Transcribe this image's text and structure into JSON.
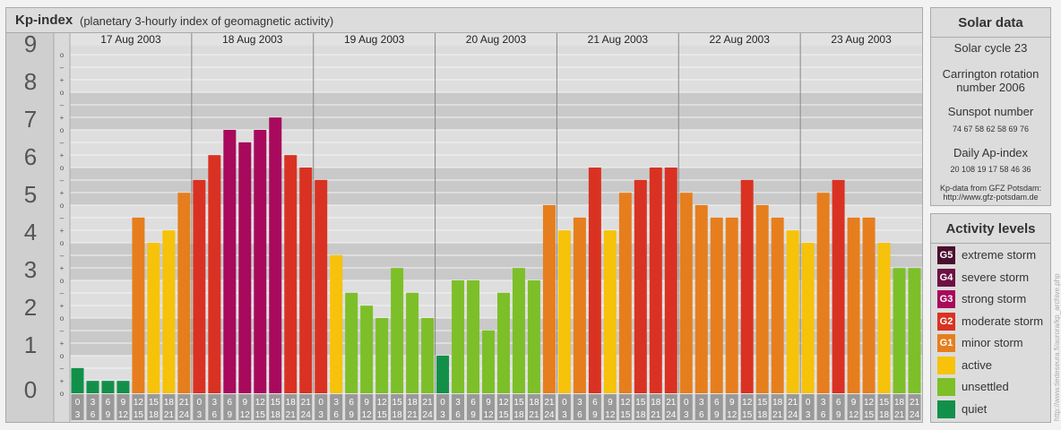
{
  "header": {
    "title": "Kp-index",
    "subtitle": "(planetary 3-hourly index of geomagnetic activity)"
  },
  "chart_data": {
    "type": "bar",
    "title": "Kp-index",
    "subtitle": "(planetary 3-hourly index of geomagnetic activity)",
    "y_ticks": [
      "0",
      "1",
      "2",
      "3",
      "4",
      "5",
      "6",
      "7",
      "8",
      "9"
    ],
    "ylim": [
      0,
      9
    ],
    "minor_ticks": [
      "o",
      "+",
      "–"
    ],
    "days": [
      "17 Aug 2003",
      "18 Aug 2003",
      "19 Aug 2003",
      "20 Aug 2003",
      "21 Aug 2003",
      "22 Aug 2003",
      "23 Aug 2003"
    ],
    "interval_start": [
      "0",
      "3",
      "6",
      "9",
      "12",
      "15",
      "18",
      "21"
    ],
    "interval_end": [
      "3",
      "6",
      "9",
      "12",
      "15",
      "18",
      "21",
      "24"
    ],
    "values": [
      [
        0.67,
        0.33,
        0.33,
        0.33,
        4.67,
        4.0,
        4.33,
        5.33
      ],
      [
        5.67,
        6.33,
        7.0,
        6.67,
        7.0,
        7.33,
        6.33,
        6.0
      ],
      [
        5.67,
        3.67,
        2.67,
        2.33,
        2.0,
        3.33,
        2.67,
        2.0
      ],
      [
        1.0,
        3.0,
        3.0,
        1.67,
        2.67,
        3.33,
        3.0,
        5.0
      ],
      [
        4.33,
        4.67,
        6.0,
        4.33,
        5.33,
        5.67,
        6.0,
        6.0
      ],
      [
        5.33,
        5.0,
        4.67,
        4.67,
        5.67,
        5.0,
        4.67,
        4.33
      ],
      [
        4.0,
        5.33,
        5.67,
        4.67,
        4.67,
        4.0,
        3.33,
        3.33
      ]
    ],
    "grid": true,
    "legend": "right"
  },
  "colors": {
    "extreme": "#4b0f2e",
    "severe": "#6e1044",
    "strong": "#a8095c",
    "moderate": "#d93222",
    "minor": "#e67e1e",
    "active": "#f6c20a",
    "unsettled": "#7dbf28",
    "quiet": "#12904a",
    "band_dark": "#c9c9c9",
    "band_light": "#dedede",
    "axis_box": "#999999"
  },
  "solar": {
    "title": "Solar data",
    "cycle": "Solar cycle 23",
    "carrington_line1": "Carrington rotation",
    "carrington_line2": "number 2006",
    "sunspot_label": "Sunspot number",
    "sunspot_values": "74   67   58   62   58   69   76",
    "ap_label": "Daily Ap-index",
    "ap_values": "20  108   19   17   58   46   36",
    "source_line1": "Kp-data from GFZ Potsdam:",
    "source_line2": "http://www.gfz-potsdam.de"
  },
  "activity": {
    "title": "Activity levels",
    "levels": [
      {
        "code": "G5",
        "label": "extreme storm",
        "color": "#4b0f2e"
      },
      {
        "code": "G4",
        "label": "severe storm",
        "color": "#6e1044"
      },
      {
        "code": "G3",
        "label": "strong storm",
        "color": "#a8095c"
      },
      {
        "code": "G2",
        "label": "moderate storm",
        "color": "#d93222"
      },
      {
        "code": "G1",
        "label": "minor storm",
        "color": "#e67e1e"
      },
      {
        "code": "",
        "label": "active",
        "color": "#f6c20a"
      },
      {
        "code": "",
        "label": "unsettled",
        "color": "#7dbf28"
      },
      {
        "code": "",
        "label": "quiet",
        "color": "#12904a"
      }
    ]
  },
  "credit": "http://www.tiedeseura.fi/aurora/kp_archive.php"
}
